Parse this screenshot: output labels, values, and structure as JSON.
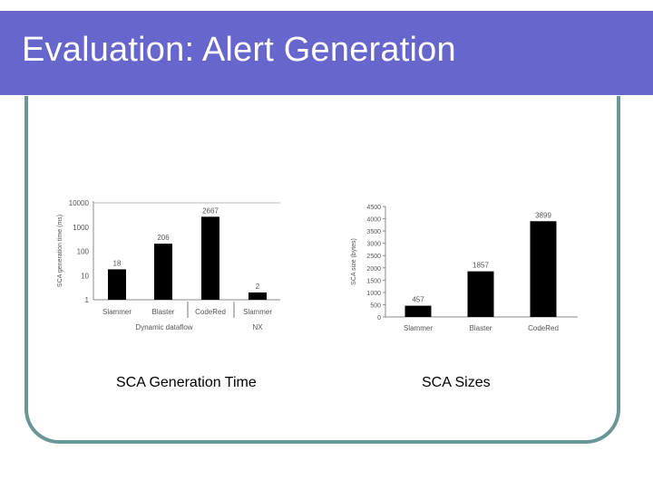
{
  "slide": {
    "title": "Evaluation: Alert Generation",
    "captions": {
      "left": "SCA Generation Time",
      "right": "SCA Sizes"
    },
    "colors": {
      "title_bar": "#6666cc",
      "frame": "#6b9696",
      "bar": "#000000"
    }
  },
  "chart_data": [
    {
      "type": "bar",
      "scale": "log",
      "title": "",
      "ylabel": "SCA generation time (ms)",
      "xlabel": "",
      "yticks": [
        "10000",
        "1000",
        "100",
        "10",
        "1"
      ],
      "categories": [
        "Slammer",
        "Blaster",
        "CodeRed",
        "Slammer"
      ],
      "values": [
        18,
        206,
        2667,
        2
      ],
      "data_labels": [
        "18",
        "206",
        "2667",
        "2"
      ],
      "groups": [
        {
          "label": "Dynamic dataflow",
          "categories": [
            "Slammer",
            "Blaster",
            "CodeRed"
          ]
        },
        {
          "label": "NX",
          "categories": [
            "Slammer"
          ]
        }
      ],
      "ylim": [
        1,
        10000
      ]
    },
    {
      "type": "bar",
      "title": "",
      "ylabel": "SCA size (bytes)",
      "xlabel": "",
      "yticks": [
        "4500",
        "4000",
        "3500",
        "3000",
        "2500",
        "2000",
        "1500",
        "1000",
        "500",
        "0"
      ],
      "categories": [
        "Slammer",
        "Blaster",
        "CodeRed"
      ],
      "values": [
        457,
        1857,
        3899
      ],
      "data_labels": [
        "457",
        "1857",
        "3899"
      ],
      "ylim": [
        0,
        4500
      ]
    }
  ]
}
